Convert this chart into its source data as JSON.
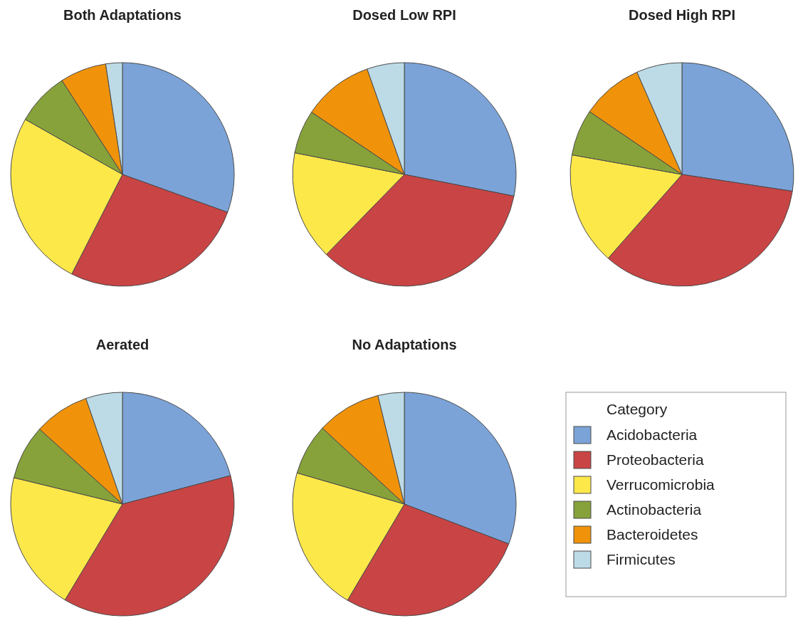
{
  "chart_data": [
    {
      "type": "pie",
      "title": "Both Adaptations",
      "categories": [
        "Acidobacteria",
        "Proteobacteria",
        "Verrucomicrobia",
        "Actinobacteria",
        "Bacteroidetes",
        "Firmicutes"
      ],
      "values": [
        30.5,
        27,
        25.7,
        7.7,
        6.7,
        2.4
      ],
      "colors": [
        "#7ba3d8",
        "#c94444",
        "#fde84a",
        "#87a23a",
        "#f0930a",
        "#bcdbe6"
      ],
      "legend": "bottom right",
      "legend_title": "Category"
    },
    {
      "type": "pie",
      "title": "Dosed Low RPI",
      "categories": [
        null,
        null,
        null,
        null,
        null,
        null
      ],
      "values": [
        28.1,
        34.2,
        15.8,
        6.3,
        10.2,
        5.4
      ],
      "colors": [
        "#7ba3d8",
        "#c94444",
        "#fde84a",
        "#87a23a",
        "#f0930a",
        "#bcdbe6"
      ]
    },
    {
      "type": "pie",
      "title": "Dosed High RPI",
      "categories": [
        null,
        null,
        null,
        null,
        null,
        null
      ],
      "values": [
        27.4,
        34.1,
        16.3,
        6.7,
        8.9,
        6.6
      ],
      "colors": [
        "#7ba3d8",
        "#c94444",
        "#fde84a",
        "#87a23a",
        "#f0930a",
        "#bcdbe6"
      ]
    },
    {
      "type": "pie",
      "title": "Aerated",
      "categories": [
        null,
        null,
        null,
        null,
        null,
        null
      ],
      "values": [
        20.9,
        37.7,
        20.2,
        7.9,
        8,
        5.3
      ],
      "colors": [
        "#7ba3d8",
        "#c94444",
        "#fde84a",
        "#87a23a",
        "#f0930a",
        "#bcdbe6"
      ]
    },
    {
      "type": "pie",
      "title": "No Adaptations",
      "categories": [
        null,
        null,
        null,
        null,
        null,
        null
      ],
      "values": [
        30.8,
        27.7,
        21,
        7.4,
        9.3,
        3.8
      ],
      "colors": [
        "#7ba3d8",
        "#c94444",
        "#fde84a",
        "#87a23a",
        "#f0930a",
        "#bcdbe6"
      ]
    }
  ]
}
